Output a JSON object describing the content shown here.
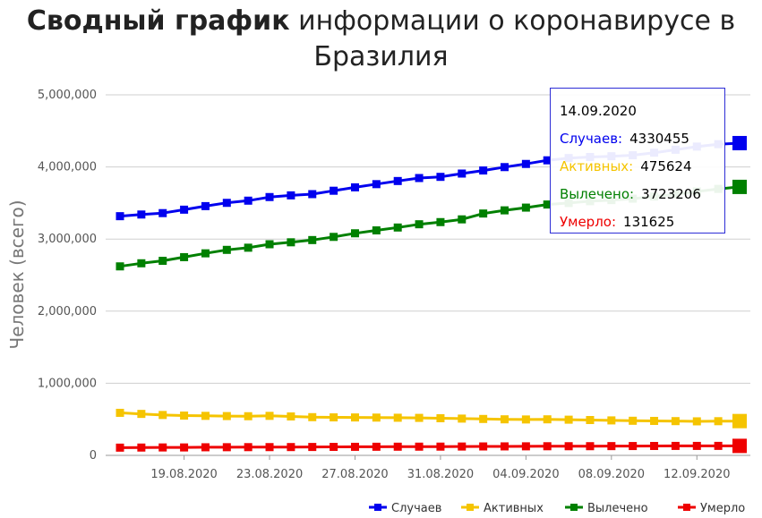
{
  "title": {
    "bold": "Сводный график",
    "rest": "информации о коронавирусе в Бразилия"
  },
  "tooltip": {
    "date": "14.09.2020",
    "rows": [
      {
        "label": "Случаев:",
        "value": "4330455",
        "color": "#0000ee"
      },
      {
        "label": "Активных:",
        "value": "475624",
        "color": "#f5c400"
      },
      {
        "label": "Вылечено:",
        "value": "3723206",
        "color": "#008000"
      },
      {
        "label": "Умерло:",
        "value": "131625",
        "color": "#ee0000"
      }
    ]
  },
  "chart_data": {
    "type": "line",
    "ylabel": "Человек (всего)",
    "xlabel": "",
    "ylim": [
      0,
      5000000
    ],
    "y_ticks": [
      "0",
      "1,000,000",
      "2,000,000",
      "3,000,000",
      "4,000,000",
      "5,000,000"
    ],
    "y_tick_values": [
      0,
      1000000,
      2000000,
      3000000,
      4000000,
      5000000
    ],
    "x_tick_labels": [
      "19.08.2020",
      "23.08.2020",
      "27.08.2020",
      "31.08.2020",
      "04.09.2020",
      "08.09.2020",
      "12.09.2020"
    ],
    "x_tick_dates": [
      "2020-08-19",
      "2020-08-23",
      "2020-08-27",
      "2020-08-31",
      "2020-09-04",
      "2020-09-08",
      "2020-09-12"
    ],
    "x": [
      "2020-08-16",
      "2020-08-17",
      "2020-08-18",
      "2020-08-19",
      "2020-08-20",
      "2020-08-21",
      "2020-08-22",
      "2020-08-23",
      "2020-08-24",
      "2020-08-25",
      "2020-08-26",
      "2020-08-27",
      "2020-08-28",
      "2020-08-29",
      "2020-08-30",
      "2020-08-31",
      "2020-09-01",
      "2020-09-02",
      "2020-09-03",
      "2020-09-04",
      "2020-09-05",
      "2020-09-06",
      "2020-09-07",
      "2020-09-08",
      "2020-09-09",
      "2020-09-10",
      "2020-09-11",
      "2020-09-12",
      "2020-09-13",
      "2020-09-14"
    ],
    "grid": true,
    "legend_position": "bottom-right",
    "series": [
      {
        "name": "Случаев",
        "color": "#0000ee",
        "values": [
          3317096,
          3340197,
          3359570,
          3407354,
          3456652,
          3501975,
          3532330,
          3582362,
          3605783,
          3622861,
          3669995,
          3717156,
          3761391,
          3804803,
          3846153,
          3862311,
          3908272,
          3950931,
          3997865,
          4041638,
          4091801,
          4123000,
          4137521,
          4147794,
          4162073,
          4197889,
          4238446,
          4282164,
          4315687,
          4330455
        ]
      },
      {
        "name": "Активных",
        "color": "#f5c400",
        "values": [
          590000,
          575000,
          560000,
          552000,
          548000,
          545000,
          543000,
          548000,
          540000,
          530000,
          527000,
          526000,
          524000,
          522000,
          520000,
          515000,
          510000,
          505000,
          500000,
          498000,
          500000,
          495000,
          490000,
          485000,
          480000,
          478000,
          475000,
          472000,
          474000,
          475624
        ]
      },
      {
        "name": "Вылечено",
        "color": "#008000",
        "values": [
          2621000,
          2664000,
          2698000,
          2749000,
          2802000,
          2850000,
          2880000,
          2928000,
          2955000,
          2986000,
          3030000,
          3080000,
          3120000,
          3160000,
          3205000,
          3235000,
          3273000,
          3354000,
          3398000,
          3436000,
          3479000,
          3500000,
          3525000,
          3540000,
          3560000,
          3590000,
          3620000,
          3660000,
          3695000,
          3723206
        ]
      },
      {
        "name": "Умерло",
        "color": "#ee0000",
        "values": [
          107232,
          108536,
          109888,
          110019,
          112304,
          113358,
          114250,
          114744,
          115309,
          116580,
          117665,
          118649,
          119504,
          120262,
          120828,
          121381,
          122596,
          123780,
          124614,
          125502,
          126650,
          126960,
          127464,
          128539,
          129522,
          130396,
          131210,
          131274,
          131625,
          131625
        ]
      }
    ]
  }
}
